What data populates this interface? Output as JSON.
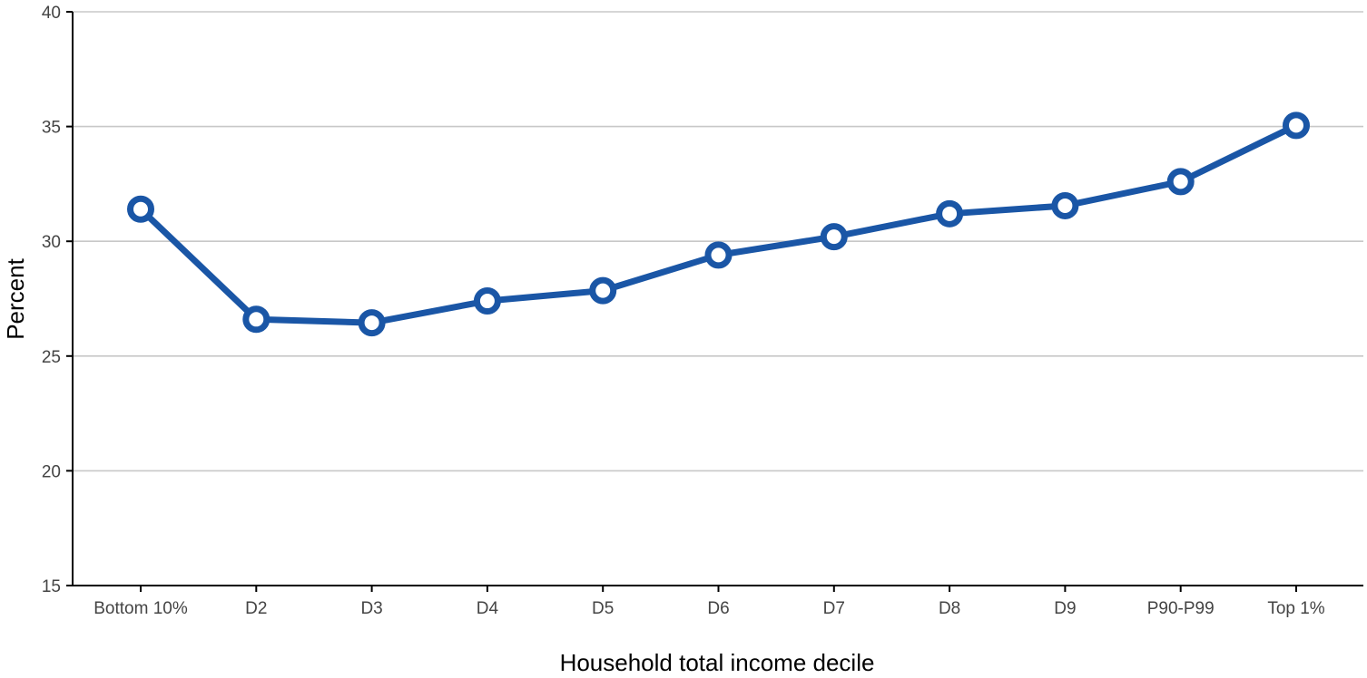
{
  "chart_data": {
    "type": "line",
    "categories": [
      "Bottom 10%",
      "D2",
      "D3",
      "D4",
      "D5",
      "D6",
      "D7",
      "D8",
      "D9",
      "P90-P99",
      "Top 1%"
    ],
    "series": [
      {
        "values": [
          31.4,
          26.6,
          26.45,
          27.4,
          27.85,
          29.4,
          30.2,
          31.2,
          31.55,
          32.6,
          35.05
        ]
      }
    ],
    "xlabel": "Household total income decile",
    "ylabel": "Percent",
    "ylim": [
      15,
      40
    ],
    "yticks": [
      15,
      20,
      25,
      30,
      35,
      40
    ],
    "grid": "horizontal",
    "legend": "none",
    "colors": {
      "line": "#1a56a6",
      "marker_fill": "#ffffff",
      "grid": "#c8c8c8",
      "axis": "#000000"
    }
  }
}
